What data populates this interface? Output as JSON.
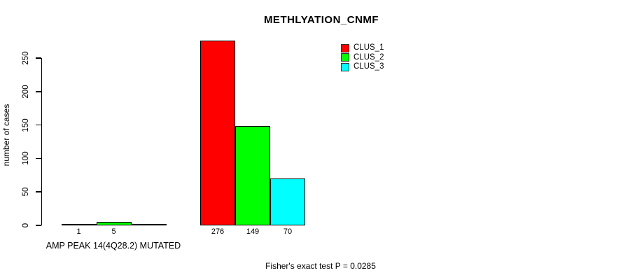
{
  "chart_data": {
    "type": "bar",
    "title": "METHLYATION_CNMF",
    "ylabel": "number of cases",
    "xlabel": "AMP PEAK 14(4Q28.2) MUTATED",
    "footnote": "Fisher's exact test P = 0.0285",
    "ylim": [
      0,
      250
    ],
    "yticks": [
      0,
      50,
      100,
      150,
      200,
      250
    ],
    "grid": false,
    "legend_position": "top-right",
    "legend": [
      {
        "label": "CLUS_1",
        "color": "#ff0000"
      },
      {
        "label": "CLUS_2",
        "color": "#00ff00"
      },
      {
        "label": "CLUS_3",
        "color": "#00ffff"
      }
    ],
    "bar_colors": [
      "#ff0000",
      "#00ff00",
      "#00ffff"
    ],
    "groups": [
      {
        "category": "AMP PEAK 14(4Q28.2) MUTATED",
        "series": [
          "CLUS_1",
          "CLUS_2",
          "CLUS_3"
        ],
        "values": [
          1,
          5,
          0
        ],
        "bar_labels": [
          "1",
          "5",
          ""
        ]
      },
      {
        "category": "",
        "series": [
          "CLUS_1",
          "CLUS_2",
          "CLUS_3"
        ],
        "values": [
          276,
          149,
          70
        ],
        "bar_labels": [
          "276",
          "149",
          "70"
        ]
      }
    ]
  }
}
